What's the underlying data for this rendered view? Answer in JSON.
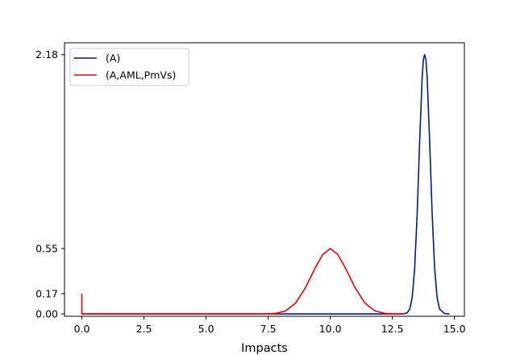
{
  "chart_data": {
    "type": "line",
    "title": "",
    "xlabel": "Impacts",
    "ylabel": "",
    "xlim": [
      -0.7,
      15.4
    ],
    "ylim": [
      -0.02,
      2.28
    ],
    "xticks": [
      0.0,
      2.5,
      5.0,
      7.5,
      10.0,
      12.5,
      15.0
    ],
    "xtick_labels": [
      "0.0",
      "2.5",
      "5.0",
      "7.5",
      "10.0",
      "12.5",
      "15.0"
    ],
    "yticks": [
      0.0,
      0.17,
      0.55,
      2.18
    ],
    "ytick_labels": [
      "0.00",
      "0.17",
      "0.55",
      "2.18"
    ],
    "grid": false,
    "legend_position": "top-left",
    "series": [
      {
        "name": "(A)",
        "color": "#001c7f",
        "x": [
          0.0,
          12.8,
          13.0,
          13.1,
          13.2,
          13.3,
          13.4,
          13.5,
          13.6,
          13.7,
          13.75,
          13.8,
          13.85,
          13.9,
          14.0,
          14.1,
          14.2,
          14.3,
          14.4,
          14.6,
          14.8
        ],
        "y": [
          0.0,
          0.0,
          0.003,
          0.01,
          0.04,
          0.14,
          0.39,
          0.85,
          1.46,
          1.99,
          2.14,
          2.18,
          2.14,
          1.99,
          1.46,
          0.85,
          0.39,
          0.14,
          0.04,
          0.003,
          0.0
        ]
      },
      {
        "name": "(A,AML,PmVs)",
        "color": "#e8000b",
        "x": [
          0.0,
          0.0,
          0.02,
          7.4,
          7.8,
          8.2,
          8.6,
          9.0,
          9.4,
          9.7,
          10.0,
          10.3,
          10.6,
          11.0,
          11.4,
          11.8,
          12.2,
          12.5,
          13.0
        ],
        "y": [
          0.17,
          0.0,
          0.0,
          0.0,
          0.004,
          0.025,
          0.09,
          0.22,
          0.39,
          0.5,
          0.55,
          0.5,
          0.39,
          0.22,
          0.09,
          0.025,
          0.004,
          0.0,
          0.0
        ]
      }
    ]
  }
}
